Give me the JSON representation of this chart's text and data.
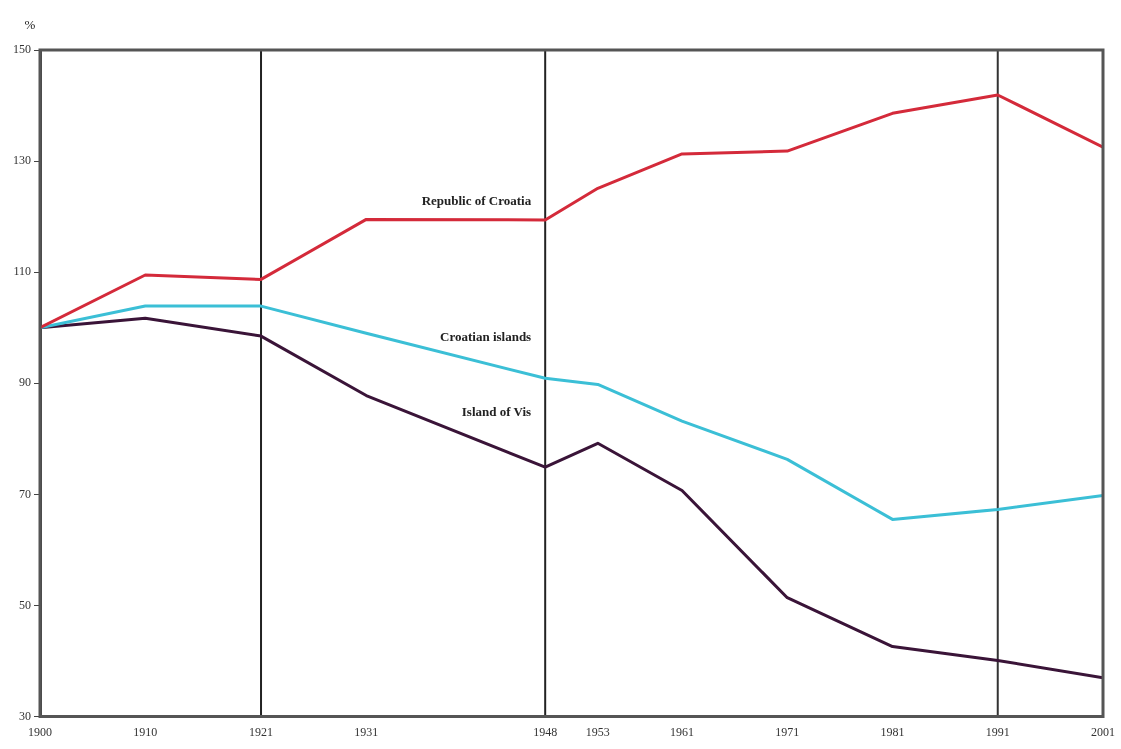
{
  "chart_data": {
    "type": "line",
    "ylabel": "%",
    "x": [
      1900,
      1910,
      1921,
      1931,
      1948,
      1953,
      1961,
      1971,
      1981,
      1991,
      2001
    ],
    "xlim": [
      1900,
      2001
    ],
    "xticks": [
      1900,
      1910,
      1921,
      1931,
      1948,
      1953,
      1961,
      1971,
      1981,
      1991,
      2001
    ],
    "ylim": [
      30,
      150
    ],
    "yticks": [
      30,
      50,
      70,
      90,
      110,
      130,
      150
    ],
    "grid": false,
    "legend": false,
    "marker": "none",
    "line_style": "solid",
    "ref_lines": [
      {
        "axis": "x",
        "value": 1921,
        "color": "#222222"
      },
      {
        "axis": "x",
        "value": 1948,
        "color": "#222222"
      },
      {
        "axis": "x",
        "value": 1991,
        "color": "#333333"
      }
    ],
    "series": [
      {
        "name": "Republic of Croatia",
        "color": "#d42a3a",
        "values": [
          100,
          109.5,
          108.7,
          119.5,
          119.4,
          125.1,
          131.3,
          131.8,
          138.6,
          141.9,
          132.5
        ]
      },
      {
        "name": "Croatian islands",
        "color": "#3bbfd6",
        "values": [
          100,
          103.9,
          103.9,
          99,
          90.9,
          89.8,
          83.2,
          76.3,
          65.5,
          67.3,
          69.8
        ]
      },
      {
        "name": "Island of Vis",
        "color": "#3a1438",
        "values": [
          100,
          101.7,
          98.5,
          87.8,
          74.9,
          79.2,
          70.7,
          51.4,
          42.6,
          40.1,
          37.0
        ]
      }
    ]
  }
}
